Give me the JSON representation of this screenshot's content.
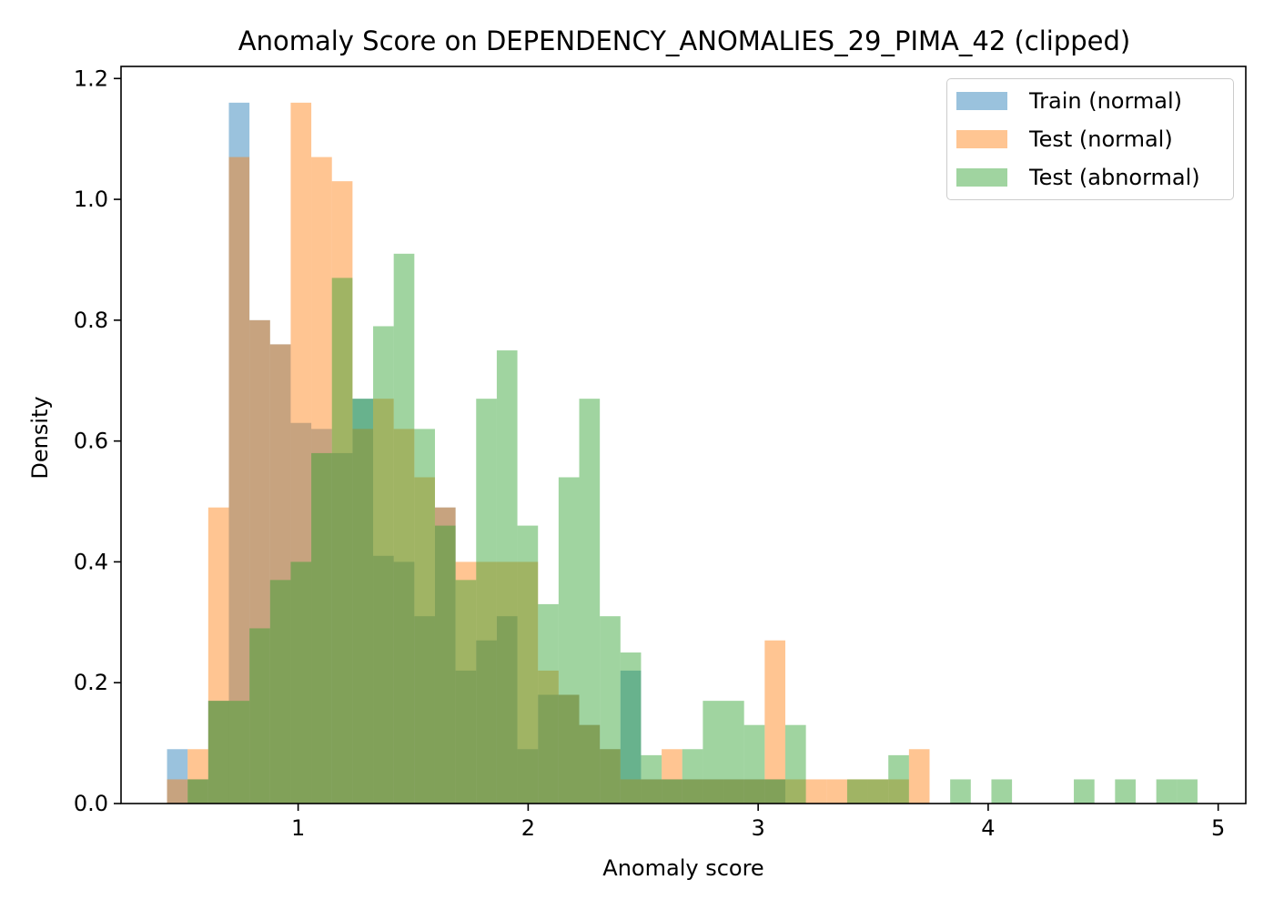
{
  "chart_data": {
    "type": "histogram",
    "title": "Anomaly Score on DEPENDENCY_ANOMALIES_29_PIMA_42 (clipped)",
    "xlabel": "Anomaly score",
    "ylabel": "Density",
    "xlim": [
      0.23,
      5.12
    ],
    "ylim": [
      0,
      1.22
    ],
    "xticks": [
      1,
      2,
      3,
      4,
      5
    ],
    "yticks": [
      0.0,
      0.2,
      0.4,
      0.6,
      0.8,
      1.0,
      1.2
    ],
    "ytick_labels": [
      "0.0",
      "0.2",
      "0.4",
      "0.6",
      "0.8",
      "1.0",
      "1.2"
    ],
    "grid": false,
    "legend_position": "top-right",
    "bin_start": 0.43,
    "bin_width": 0.0896,
    "bin_count": 50,
    "series": [
      {
        "name": "Train (normal)",
        "color": "#1f77b4",
        "opacity": 0.45,
        "values": [
          0.09,
          0.04,
          0.17,
          1.16,
          0.8,
          0.76,
          0.63,
          0.62,
          0.58,
          0.67,
          0.41,
          0.4,
          0.31,
          0.49,
          0.22,
          0.27,
          0.31,
          0.09,
          0.18,
          0.18,
          0.13,
          0.09,
          0.22,
          0.04,
          0.04,
          0.04,
          0.04,
          0.04,
          0.04,
          0.04,
          0.0,
          0.0,
          0.0,
          0.0,
          0.0,
          0.0,
          0.0,
          0.0,
          0.0,
          0.0,
          0.0,
          0.0,
          0.0,
          0.0,
          0.0,
          0.0,
          0.0,
          0.0,
          0.0,
          0.0
        ]
      },
      {
        "name": "Test (normal)",
        "color": "#ff7f0e",
        "opacity": 0.45,
        "values": [
          0.04,
          0.09,
          0.49,
          1.07,
          0.8,
          0.76,
          1.16,
          1.07,
          1.03,
          0.62,
          0.67,
          0.62,
          0.54,
          0.49,
          0.4,
          0.4,
          0.4,
          0.4,
          0.22,
          0.18,
          0.13,
          0.09,
          0.04,
          0.04,
          0.09,
          0.04,
          0.04,
          0.04,
          0.04,
          0.27,
          0.04,
          0.04,
          0.04,
          0.04,
          0.04,
          0.04,
          0.09,
          0.0,
          0.0,
          0.0,
          0.0,
          0.0,
          0.0,
          0.0,
          0.0,
          0.0,
          0.0,
          0.0,
          0.0,
          0.0
        ]
      },
      {
        "name": "Test (abnormal)",
        "color": "#2ca02c",
        "opacity": 0.45,
        "values": [
          0.0,
          0.04,
          0.17,
          0.17,
          0.29,
          0.37,
          0.4,
          0.58,
          0.87,
          0.67,
          0.79,
          0.91,
          0.62,
          0.46,
          0.37,
          0.67,
          0.75,
          0.46,
          0.33,
          0.54,
          0.67,
          0.31,
          0.25,
          0.08,
          0.04,
          0.09,
          0.17,
          0.17,
          0.13,
          0.04,
          0.13,
          0.0,
          0.0,
          0.04,
          0.04,
          0.08,
          0.0,
          0.0,
          0.04,
          0.0,
          0.04,
          0.0,
          0.0,
          0.0,
          0.04,
          0.0,
          0.04,
          0.0,
          0.04,
          0.04
        ]
      }
    ]
  }
}
